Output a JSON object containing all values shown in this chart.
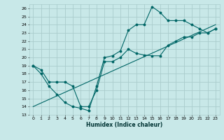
{
  "xlabel": "Humidex (Indice chaleur)",
  "bg_color": "#c8e8e8",
  "grid_color": "#aacccc",
  "line_color": "#006666",
  "xlim": [
    -0.5,
    23.5
  ],
  "ylim": [
    13,
    26.5
  ],
  "yticks": [
    13,
    14,
    15,
    16,
    17,
    18,
    19,
    20,
    21,
    22,
    23,
    24,
    25,
    26
  ],
  "xticks": [
    0,
    1,
    2,
    3,
    4,
    5,
    6,
    7,
    8,
    9,
    10,
    11,
    12,
    13,
    14,
    15,
    16,
    17,
    18,
    19,
    20,
    21,
    22,
    23
  ],
  "line1_x": [
    0,
    1,
    2,
    3,
    4,
    5,
    6,
    7,
    8,
    9,
    10,
    11,
    12,
    13,
    14,
    15,
    16,
    17,
    18,
    19,
    20,
    21,
    22,
    23
  ],
  "line1_y": [
    19,
    18,
    16.5,
    15.5,
    14.5,
    14,
    13.8,
    13.5,
    16.5,
    20,
    20.2,
    20.8,
    23.3,
    24,
    24,
    26.2,
    25.5,
    24.5,
    24.5,
    24.5,
    24,
    23.5,
    23,
    23.5
  ],
  "line2_x": [
    0,
    1,
    2,
    3,
    4,
    5,
    6,
    7,
    8,
    9,
    10,
    11,
    12,
    13,
    14,
    15,
    16,
    17,
    18,
    19,
    20,
    21,
    22,
    23
  ],
  "line2_y": [
    19,
    18.5,
    17,
    17,
    17,
    16.5,
    14,
    14,
    16,
    19.5,
    19.5,
    20,
    21,
    20.5,
    20.3,
    20.2,
    20.2,
    21.5,
    22,
    22.5,
    22.5,
    23,
    23,
    23.5
  ],
  "line3_x": [
    0,
    23
  ],
  "line3_y": [
    14,
    24
  ]
}
